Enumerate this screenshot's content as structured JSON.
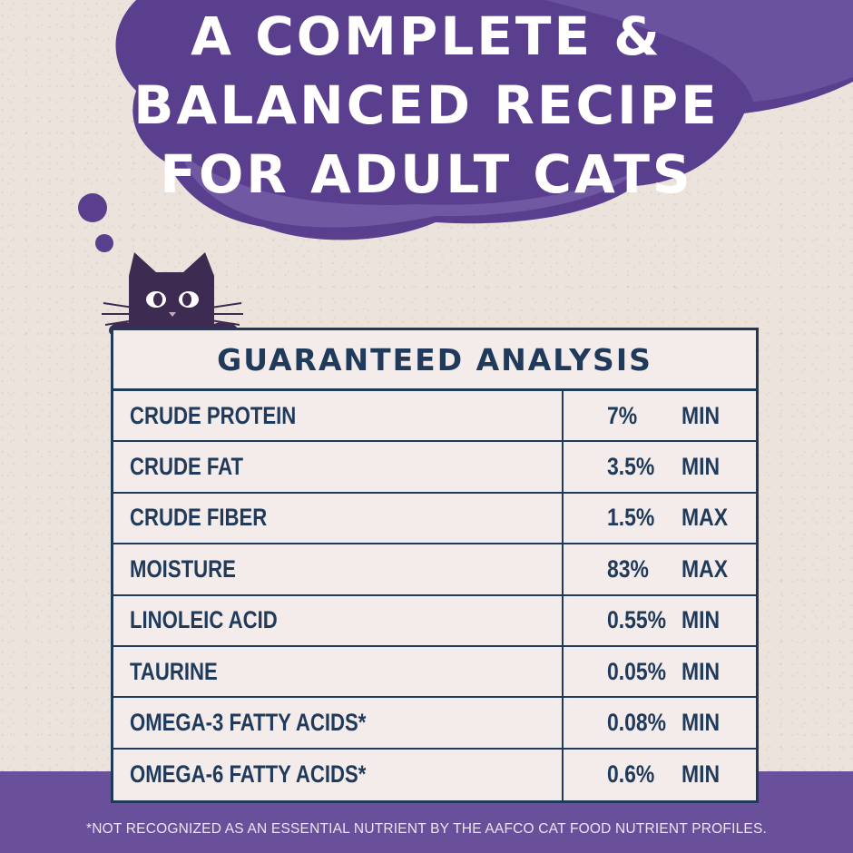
{
  "headline": {
    "lines": [
      "A COMPLETE &",
      "BALANCED RECIPE",
      "FOR ADULT CATS"
    ]
  },
  "table": {
    "title": "GUARANTEED ANALYSIS",
    "rows": [
      {
        "nutrient": "CRUDE PROTEIN",
        "value": "7%",
        "qualifier": "MIN"
      },
      {
        "nutrient": "CRUDE FAT",
        "value": "3.5%",
        "qualifier": "MIN"
      },
      {
        "nutrient": "CRUDE FIBER",
        "value": "1.5%",
        "qualifier": "MAX"
      },
      {
        "nutrient": "MOISTURE",
        "value": "83%",
        "qualifier": "MAX"
      },
      {
        "nutrient": "LINOLEIC ACID",
        "value": "0.55%",
        "qualifier": "MIN"
      },
      {
        "nutrient": "TAURINE",
        "value": "0.05%",
        "qualifier": "MIN"
      },
      {
        "nutrient": "OMEGA-3 FATTY ACIDS*",
        "value": "0.08%",
        "qualifier": "MIN"
      },
      {
        "nutrient": "OMEGA-6 FATTY ACIDS*",
        "value": "0.6%",
        "qualifier": "MIN"
      }
    ]
  },
  "footnote": "*NOT RECOGNIZED AS AN ESSENTIAL NUTRIENT BY THE AAFCO CAT FOOD NUTRIENT PROFILES.",
  "colors": {
    "background": "#ece4dc",
    "cloud": "#5a3f8e",
    "cloud_light": "#7a62ac",
    "table_border": "#1f3a5a",
    "bottom_band": "#6a4f9a"
  },
  "icons": [
    "thought-cloud-icon",
    "cat-icon"
  ]
}
